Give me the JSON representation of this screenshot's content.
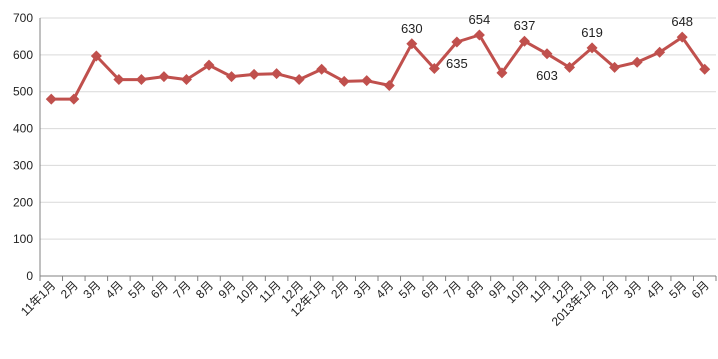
{
  "chart_data": {
    "type": "line",
    "categories": [
      "11年1月",
      "2月",
      "3月",
      "4月",
      "5月",
      "6月",
      "7月",
      "8月",
      "9月",
      "10月",
      "11月",
      "12月",
      "12年1月",
      "2月",
      "3月",
      "4月",
      "5月",
      "6月",
      "7月",
      "8月",
      "9月",
      "10月",
      "11月",
      "12月",
      "2013年1月",
      "2月",
      "3月",
      "4月",
      "5月",
      "6月"
    ],
    "series": [
      {
        "values": [
          480,
          480,
          597,
          533,
          533,
          541,
          533,
          572,
          541,
          547,
          549,
          533,
          561,
          528,
          530,
          517,
          630,
          563,
          635,
          654,
          551,
          637,
          603,
          566,
          619,
          566,
          580,
          607,
          648,
          561
        ],
        "color": "#C0504D"
      }
    ],
    "data_labels": [
      {
        "index": 16,
        "text": "630",
        "position": "above"
      },
      {
        "index": 18,
        "text": "635",
        "position": "below"
      },
      {
        "index": 19,
        "text": "654",
        "position": "above"
      },
      {
        "index": 21,
        "text": "637",
        "position": "above"
      },
      {
        "index": 22,
        "text": "603",
        "position": "below"
      },
      {
        "index": 24,
        "text": "619",
        "position": "above"
      },
      {
        "index": 28,
        "text": "648",
        "position": "above"
      }
    ],
    "ylim": [
      0,
      700
    ],
    "yticks": [
      0,
      100,
      200,
      300,
      400,
      500,
      600,
      700
    ],
    "grid": "horizontal",
    "marker": "diamond",
    "title": "",
    "xlabel": "",
    "ylabel": ""
  }
}
